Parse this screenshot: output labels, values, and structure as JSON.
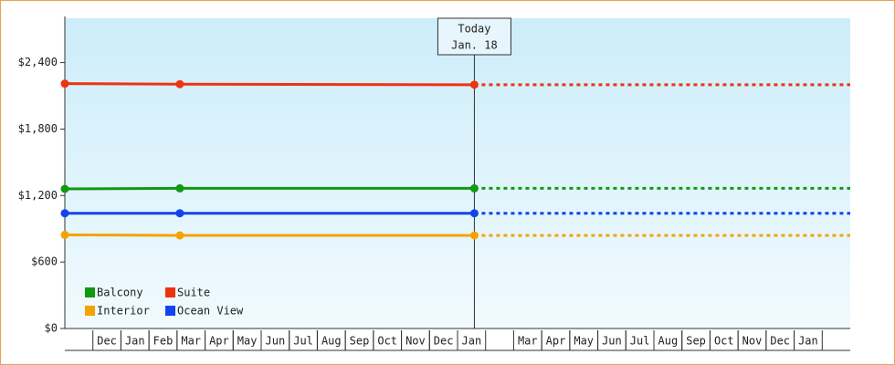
{
  "chart_data": {
    "type": "line",
    "categories": [
      null,
      "Dec",
      "Jan",
      "Feb",
      "Mar",
      "Apr",
      "May",
      "Jun",
      "Jul",
      "Aug",
      "Sep",
      "Oct",
      "Nov",
      "Dec",
      "Jan",
      null,
      "Mar",
      "Apr",
      "May",
      "Jun",
      "Jul",
      "Aug",
      "Sep",
      "Oct",
      "Nov",
      "Dec",
      "Jan",
      null
    ],
    "xlim": [
      0,
      28
    ],
    "ylim": [
      0,
      2800
    ],
    "yticks": [
      {
        "value": 0,
        "label": "$0"
      },
      {
        "value": 600,
        "label": "$600"
      },
      {
        "value": 1200,
        "label": "$1,200"
      },
      {
        "value": 1800,
        "label": "$1,800"
      },
      {
        "value": 2400,
        "label": "$2,400"
      }
    ],
    "today": {
      "x": 14.6,
      "label": "Today",
      "date": "Jan. 18"
    },
    "series": [
      {
        "name": "Balcony",
        "color": "#119911",
        "x": [
          0,
          4.1,
          14.6
        ],
        "values": [
          1260,
          1265,
          1265
        ]
      },
      {
        "name": "Suite",
        "color": "#ee3311",
        "x": [
          0,
          4.1,
          14.6
        ],
        "values": [
          2210,
          2205,
          2200
        ]
      },
      {
        "name": "Interior",
        "color": "#f5a300",
        "x": [
          0,
          4.1,
          14.6
        ],
        "values": [
          845,
          840,
          840
        ]
      },
      {
        "name": "Ocean View",
        "color": "#1144ee",
        "x": [
          0,
          4.1,
          14.6
        ],
        "values": [
          1040,
          1040,
          1040
        ]
      }
    ],
    "projection": true
  }
}
